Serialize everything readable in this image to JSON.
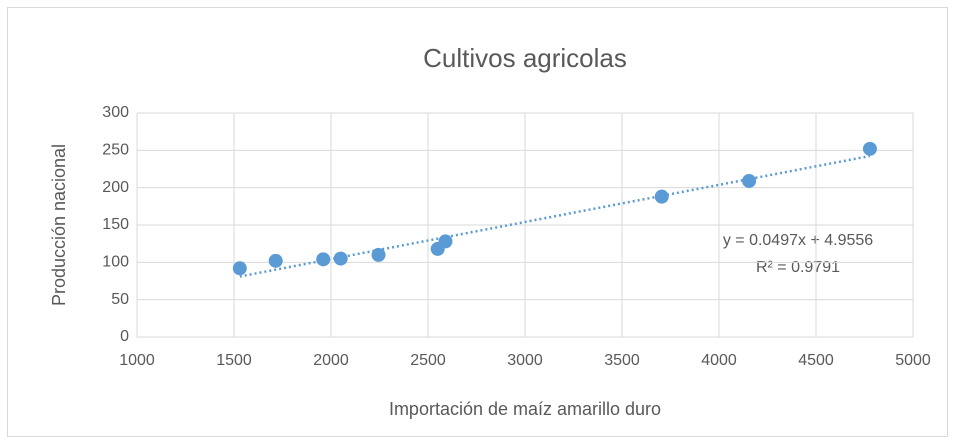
{
  "chart_data": {
    "type": "scatter",
    "title": "Cultivos agricolas",
    "x_label": "Importación de maíz amarillo duro",
    "y_label": "Producción nacional",
    "series": [
      {
        "name": "Producción nacional",
        "color": "#5b9bd5",
        "x": [
          1530,
          1715,
          1960,
          2050,
          2245,
          2550,
          2590,
          3705,
          4155,
          4778
        ],
        "values": [
          92,
          102,
          104,
          105,
          110,
          118,
          128,
          188,
          209,
          252
        ]
      }
    ],
    "trendline": {
      "equation": "y = 0.0497x + 4.9556",
      "r2": "R² = 0.9791"
    },
    "xlim": [
      1000,
      5000
    ],
    "xticks": [
      1000,
      1500,
      2000,
      2500,
      3000,
      3500,
      4000,
      4500,
      5000
    ],
    "ylim": [
      0,
      300
    ],
    "yticks": [
      0,
      50,
      100,
      150,
      200,
      250,
      300
    ],
    "grid": true
  }
}
